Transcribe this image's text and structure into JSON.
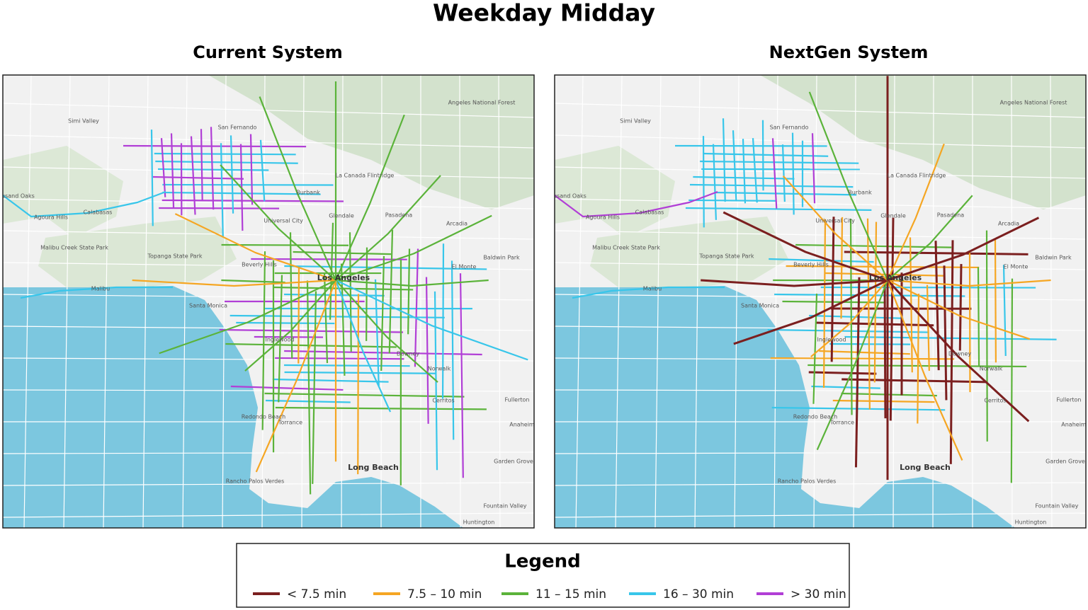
{
  "title": "Weekday Midday",
  "panels": [
    {
      "title": "Current System"
    },
    {
      "title": "NextGen System"
    }
  ],
  "places": [
    "Simi Valley",
    "Angeles National Forest",
    "San Fernando",
    "La Canada Flintridge",
    "Thousand Oaks",
    "Calabasas",
    "Agoura Hills",
    "Burbank",
    "Glendale",
    "Pasadena",
    "Arcadia",
    "Universal City",
    "Malibu Creek State Park",
    "Topanga State Park",
    "Baldwin Park",
    "El Monte",
    "Beverly Hills",
    "Los Angeles",
    "Malibu",
    "Santa Monica",
    "Inglewood",
    "Downey",
    "Norwalk",
    "Fullerton",
    "Cerritos",
    "Anaheim",
    "Redondo Beach",
    "Torrance",
    "Long Beach",
    "Garden Grove",
    "Rancho Palos Verdes",
    "Fountain Valley",
    "Huntington"
  ],
  "legend": {
    "title": "Legend",
    "items": [
      {
        "label": "< 7.5 min",
        "color": "#7b1f1f"
      },
      {
        "label": "7.5 – 10 min",
        "color": "#f5a623"
      },
      {
        "label": "11 – 15 min",
        "color": "#5bb33a"
      },
      {
        "label": "16 – 30 min",
        "color": "#38c6ea"
      },
      {
        "label": "> 30 min",
        "color": "#b13fd6"
      }
    ]
  }
}
